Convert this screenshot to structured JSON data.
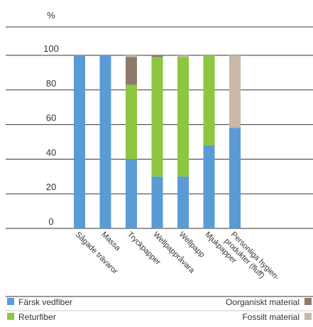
{
  "chart_data": {
    "type": "bar",
    "stacked": true,
    "ylabel": "%",
    "ylim": [
      0,
      100
    ],
    "yticks": [
      0,
      20,
      40,
      60,
      80,
      100
    ],
    "grid": true,
    "categories": [
      "Sågade trävaror",
      "Massa",
      "Tryckpapper",
      "Wellpappråvara",
      "Wellpapp",
      "Mjukpapper",
      "Personliga hygien-\nprodukter (fluff)"
    ],
    "series": [
      {
        "name": "Färsk vedfiber",
        "color": "#5b9bd5",
        "values": [
          100,
          100,
          40,
          30,
          30,
          48,
          58
        ]
      },
      {
        "name": "Returfiber",
        "color": "#8dc63f",
        "values": [
          0,
          0,
          43,
          69,
          69,
          52,
          0
        ]
      },
      {
        "name": "Oorganiskt material",
        "color": "#8b7b6b",
        "values": [
          0,
          0,
          16,
          1,
          0,
          0,
          0
        ]
      },
      {
        "name": "Fossilt material",
        "color": "#c9b8a6",
        "values": [
          0,
          0,
          1,
          0,
          1,
          0,
          42
        ]
      }
    ],
    "legend_position": "bottom"
  }
}
